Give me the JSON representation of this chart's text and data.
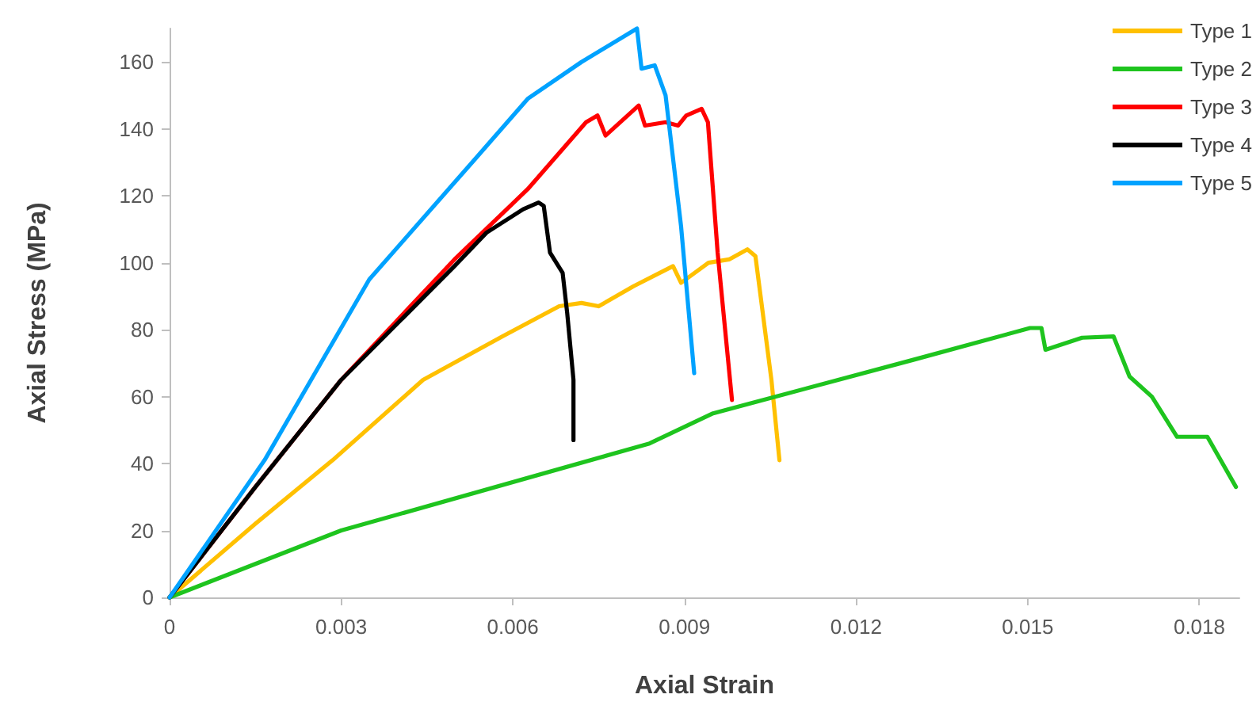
{
  "chart_data": {
    "type": "line",
    "xlabel": "Axial Strain",
    "ylabel": "Axial Stress (MPa)",
    "xlim": [
      0,
      0.0187
    ],
    "xticks": [
      0,
      0.003,
      0.006,
      0.009,
      0.012,
      0.015,
      0.018
    ],
    "ylim": [
      0,
      170
    ],
    "yticks": [
      0,
      20,
      40,
      60,
      80,
      100,
      120,
      140,
      160
    ],
    "grid": false,
    "legend": "top right",
    "marker": "none",
    "line_style": "solid",
    "series": [
      {
        "name": "Type 1",
        "color": "#ffc000",
        "x": [
          0,
          0.0015,
          0.00285,
          0.00443,
          0.00582,
          0.00681,
          0.0072,
          0.0075,
          0.00811,
          0.0088,
          0.00894,
          0.00942,
          0.00978,
          0.0101,
          0.01024,
          0.01052,
          0.01066
        ],
        "values": [
          0,
          22,
          41,
          65,
          78,
          87,
          88,
          87,
          93,
          99,
          94,
          100,
          101,
          104,
          102,
          65,
          41
        ]
      },
      {
        "name": "Type 2",
        "color": "#1ec41e",
        "x": [
          0,
          0.003,
          0.00839,
          0.0095,
          0.013,
          0.01504,
          0.01524,
          0.01531,
          0.01595,
          0.0165,
          0.01678,
          0.01717,
          0.01761,
          0.01814,
          0.01864
        ],
        "values": [
          0,
          20,
          46,
          55,
          71,
          80.5,
          80.5,
          74,
          77.6,
          78,
          66,
          60,
          48,
          48,
          33
        ]
      },
      {
        "name": "Type 3",
        "color": "#ff0000",
        "x": [
          0,
          0.0015,
          0.003,
          0.00498,
          0.00626,
          0.00728,
          0.00748,
          0.00762,
          0.0082,
          0.00831,
          0.00867,
          0.00889,
          0.00903,
          0.0093,
          0.00941,
          0.00958,
          0.00983
        ],
        "values": [
          0,
          33,
          65,
          101,
          122,
          142,
          144,
          138,
          147,
          141,
          142,
          141,
          144,
          146,
          142,
          103,
          59
        ]
      },
      {
        "name": "Type 4",
        "color": "#000000",
        "x": [
          0,
          0.0015,
          0.003,
          0.00498,
          0.00554,
          0.00618,
          0.00645,
          0.00654,
          0.00665,
          0.00687,
          0.00695,
          0.00706,
          0.00706
        ],
        "values": [
          0,
          33,
          65,
          99,
          109,
          116,
          118,
          117,
          103,
          97,
          85,
          65,
          47
        ]
      },
      {
        "name": "Type 5",
        "color": "#00a2ff",
        "x": [
          0,
          0.00166,
          0.00349,
          0.00534,
          0.00626,
          0.0072,
          0.00817,
          0.00825,
          0.00848,
          0.00867,
          0.00894,
          0.00917
        ],
        "values": [
          0,
          41,
          95,
          131,
          149,
          160,
          170,
          158,
          159,
          150,
          111,
          67
        ]
      }
    ]
  }
}
